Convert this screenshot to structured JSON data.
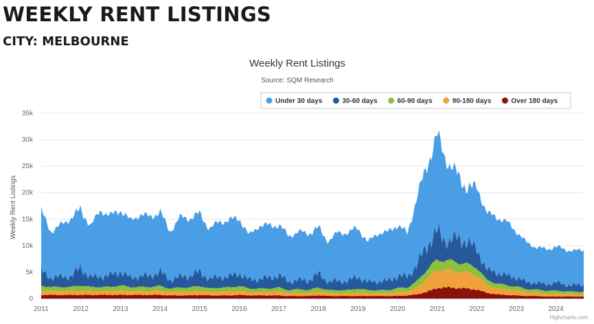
{
  "page": {
    "title": "WEEKLY RENT LISTINGS",
    "subtitle": "CITY: MELBOURNE"
  },
  "chart_data": {
    "type": "area",
    "stacked": true,
    "title": "Weekly Rent Listings",
    "subtitle": "Source: SQM Research",
    "ylabel": "Weekly Rent Listings",
    "xlabel": "",
    "ylim": [
      0,
      35000
    ],
    "y_ticks": [
      0,
      5000,
      10000,
      15000,
      20000,
      25000,
      30000,
      35000
    ],
    "y_tick_labels": [
      "0",
      "5k",
      "10k",
      "15k",
      "20k",
      "25k",
      "30k",
      "35k"
    ],
    "x_tick_labels": [
      "2011",
      "2012",
      "2013",
      "2014",
      "2015",
      "2016",
      "2017",
      "2018",
      "2019",
      "2020",
      "2021",
      "2022",
      "2023",
      "2024"
    ],
    "xlim": [
      2011.0,
      2024.7
    ],
    "grid": true,
    "legend_position": "top-right",
    "credits": "Highcharts.com",
    "series_order": "bottom-to-top: Over 180 days, 90-180 days, 60-90 days, 30-60 days, Under 30 days",
    "series": [
      {
        "name": "Under 30 days",
        "color": "#4a9ee6",
        "x": [
          2011.0,
          2011.25,
          2011.5,
          2011.75,
          2012.0,
          2012.25,
          2012.5,
          2012.75,
          2013.0,
          2013.25,
          2013.5,
          2013.75,
          2014.0,
          2014.25,
          2014.5,
          2014.75,
          2015.0,
          2015.25,
          2015.5,
          2015.75,
          2016.0,
          2016.25,
          2016.5,
          2016.75,
          2017.0,
          2017.25,
          2017.5,
          2017.75,
          2018.0,
          2018.25,
          2018.5,
          2018.75,
          2019.0,
          2019.25,
          2019.5,
          2019.75,
          2020.0,
          2020.25,
          2020.5,
          2020.75,
          2021.0,
          2021.25,
          2021.5,
          2021.75,
          2022.0,
          2022.25,
          2022.5,
          2022.75,
          2023.0,
          2023.25,
          2023.5,
          2023.75,
          2024.0,
          2024.25,
          2024.5,
          2024.7
        ],
        "values": [
          11300,
          8700,
          9800,
          11000,
          11000,
          9700,
          12500,
          11200,
          11700,
          10800,
          11700,
          11100,
          11300,
          9100,
          11200,
          10900,
          11000,
          9500,
          10400,
          10700,
          10400,
          8400,
          10100,
          9900,
          9500,
          8600,
          9100,
          8900,
          8700,
          7600,
          9200,
          9100,
          9200,
          7500,
          9100,
          9200,
          9700,
          8100,
          13000,
          15000,
          18300,
          14900,
          12200,
          10000,
          11800,
          10800,
          10400,
          10200,
          8700,
          7500,
          6700,
          6600,
          6800,
          6600,
          6500,
          6600
        ]
      },
      {
        "name": "30-60 days",
        "color": "#26589c",
        "x": [
          2011.0,
          2011.25,
          2011.5,
          2011.75,
          2012.0,
          2012.25,
          2012.5,
          2012.75,
          2013.0,
          2013.25,
          2013.5,
          2013.75,
          2014.0,
          2014.25,
          2014.5,
          2014.75,
          2015.0,
          2015.25,
          2015.5,
          2015.75,
          2016.0,
          2016.25,
          2016.5,
          2016.75,
          2017.0,
          2017.25,
          2017.5,
          2017.75,
          2018.0,
          2018.25,
          2018.5,
          2018.75,
          2019.0,
          2019.25,
          2019.5,
          2019.75,
          2020.0,
          2020.25,
          2020.5,
          2020.75,
          2021.0,
          2021.25,
          2021.5,
          2021.75,
          2022.0,
          2022.25,
          2022.5,
          2022.75,
          2023.0,
          2023.25,
          2023.5,
          2023.75,
          2024.0,
          2024.25,
          2024.5,
          2024.7
        ],
        "values": [
          2800,
          1700,
          1900,
          2000,
          3300,
          1800,
          2000,
          2200,
          2600,
          1700,
          2000,
          2100,
          2700,
          1600,
          2000,
          2200,
          2600,
          1800,
          2000,
          2000,
          2400,
          1600,
          1800,
          2000,
          2300,
          1600,
          1700,
          1800,
          2500,
          1600,
          1700,
          1700,
          2300,
          1500,
          1700,
          1700,
          2300,
          2000,
          3200,
          4600,
          5400,
          3500,
          4600,
          4200,
          3500,
          1900,
          2100,
          1800,
          1700,
          1300,
          1300,
          1200,
          1500,
          1200,
          1200,
          1300
        ]
      },
      {
        "name": "60-90 days",
        "color": "#8fbf3c",
        "x": [
          2011.0,
          2011.25,
          2011.5,
          2011.75,
          2012.0,
          2012.25,
          2012.5,
          2012.75,
          2013.0,
          2013.25,
          2013.5,
          2013.75,
          2014.0,
          2014.25,
          2014.5,
          2014.75,
          2015.0,
          2015.25,
          2015.5,
          2015.75,
          2016.0,
          2016.25,
          2016.5,
          2016.75,
          2017.0,
          2017.25,
          2017.5,
          2017.75,
          2018.0,
          2018.25,
          2018.5,
          2018.75,
          2019.0,
          2019.25,
          2019.5,
          2019.75,
          2020.0,
          2020.25,
          2020.5,
          2020.75,
          2021.0,
          2021.25,
          2021.5,
          2021.75,
          2022.0,
          2022.25,
          2022.5,
          2022.75,
          2023.0,
          2023.25,
          2023.5,
          2023.75,
          2024.0,
          2024.25,
          2024.5,
          2024.7
        ],
        "values": [
          900,
          800,
          800,
          800,
          1000,
          800,
          800,
          800,
          1000,
          800,
          800,
          800,
          900,
          700,
          800,
          800,
          900,
          700,
          800,
          800,
          900,
          700,
          700,
          700,
          800,
          600,
          700,
          600,
          800,
          600,
          600,
          600,
          800,
          600,
          600,
          600,
          800,
          800,
          1200,
          1800,
          1900,
          1800,
          1800,
          1600,
          1500,
          900,
          900,
          800,
          800,
          600,
          600,
          600,
          600,
          500,
          500,
          500
        ]
      },
      {
        "name": "90-180 days",
        "color": "#f2a13a",
        "x": [
          2011.0,
          2011.25,
          2011.5,
          2011.75,
          2012.0,
          2012.25,
          2012.5,
          2012.75,
          2013.0,
          2013.25,
          2013.5,
          2013.75,
          2014.0,
          2014.25,
          2014.5,
          2014.75,
          2015.0,
          2015.25,
          2015.5,
          2015.75,
          2016.0,
          2016.25,
          2016.5,
          2016.75,
          2017.0,
          2017.25,
          2017.5,
          2017.75,
          2018.0,
          2018.25,
          2018.5,
          2018.75,
          2019.0,
          2019.25,
          2019.5,
          2019.75,
          2020.0,
          2020.25,
          2020.5,
          2020.75,
          2021.0,
          2021.25,
          2021.5,
          2021.75,
          2022.0,
          2022.25,
          2022.5,
          2022.75,
          2023.0,
          2023.25,
          2023.5,
          2023.75,
          2024.0,
          2024.25,
          2024.5,
          2024.7
        ],
        "values": [
          800,
          700,
          700,
          700,
          800,
          700,
          700,
          700,
          800,
          700,
          700,
          700,
          800,
          600,
          700,
          700,
          800,
          600,
          700,
          700,
          800,
          600,
          600,
          600,
          700,
          500,
          600,
          500,
          700,
          500,
          500,
          500,
          600,
          500,
          500,
          500,
          700,
          700,
          1300,
          2500,
          3400,
          3300,
          3100,
          3000,
          2700,
          1500,
          1200,
          1000,
          900,
          700,
          600,
          500,
          500,
          500,
          400,
          400
        ]
      },
      {
        "name": "Over 180 days",
        "color": "#8b1209",
        "x": [
          2011.0,
          2011.25,
          2011.5,
          2011.75,
          2012.0,
          2012.25,
          2012.5,
          2012.75,
          2013.0,
          2013.25,
          2013.5,
          2013.75,
          2014.0,
          2014.25,
          2014.5,
          2014.75,
          2015.0,
          2015.25,
          2015.5,
          2015.75,
          2016.0,
          2016.25,
          2016.5,
          2016.75,
          2017.0,
          2017.25,
          2017.5,
          2017.75,
          2018.0,
          2018.25,
          2018.5,
          2018.75,
          2019.0,
          2019.25,
          2019.5,
          2019.75,
          2020.0,
          2020.25,
          2020.5,
          2020.75,
          2021.0,
          2021.25,
          2021.5,
          2021.75,
          2022.0,
          2022.25,
          2022.5,
          2022.75,
          2023.0,
          2023.25,
          2023.5,
          2023.75,
          2024.0,
          2024.25,
          2024.5,
          2024.7
        ],
        "values": [
          700,
          700,
          700,
          700,
          700,
          700,
          700,
          700,
          700,
          700,
          700,
          700,
          700,
          600,
          600,
          600,
          700,
          600,
          600,
          600,
          700,
          600,
          600,
          600,
          600,
          500,
          500,
          500,
          600,
          500,
          500,
          500,
          500,
          500,
          500,
          500,
          500,
          600,
          800,
          1300,
          2000,
          2100,
          2000,
          1900,
          1700,
          1100,
          800,
          700,
          600,
          500,
          500,
          400,
          400,
          400,
          400,
          400
        ]
      }
    ]
  }
}
